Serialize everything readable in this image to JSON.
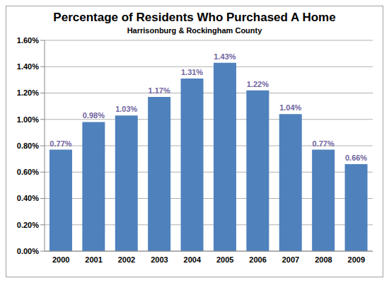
{
  "chart_data": {
    "type": "bar",
    "title": "Percentage of Residents Who Purchased A Home",
    "subtitle": "Harrisonburg & Rockingham County",
    "categories": [
      "2000",
      "2001",
      "2002",
      "2003",
      "2004",
      "2005",
      "2006",
      "2007",
      "2008",
      "2009"
    ],
    "values": [
      0.77,
      0.98,
      1.03,
      1.17,
      1.31,
      1.43,
      1.22,
      1.04,
      0.77,
      0.66
    ],
    "value_labels": [
      "0.77%",
      "0.98%",
      "1.03%",
      "1.17%",
      "1.31%",
      "1.43%",
      "1.22%",
      "1.04%",
      "0.77%",
      "0.66%"
    ],
    "color": "#4f81bd",
    "ylim": [
      0,
      1.6
    ],
    "yticks": [
      {
        "value": 0,
        "label": "0.00%"
      },
      {
        "value": 0.2,
        "label": "0.20%"
      },
      {
        "value": 0.4,
        "label": "0.40%"
      },
      {
        "value": 0.6,
        "label": "0.60%"
      },
      {
        "value": 0.8,
        "label": "0.80%"
      },
      {
        "value": 1.0,
        "label": "1.00%"
      },
      {
        "value": 1.2,
        "label": "1.20%"
      },
      {
        "value": 1.4,
        "label": "1.40%"
      },
      {
        "value": 1.6,
        "label": "1.60%"
      }
    ],
    "grid": true,
    "data_labels": true
  }
}
